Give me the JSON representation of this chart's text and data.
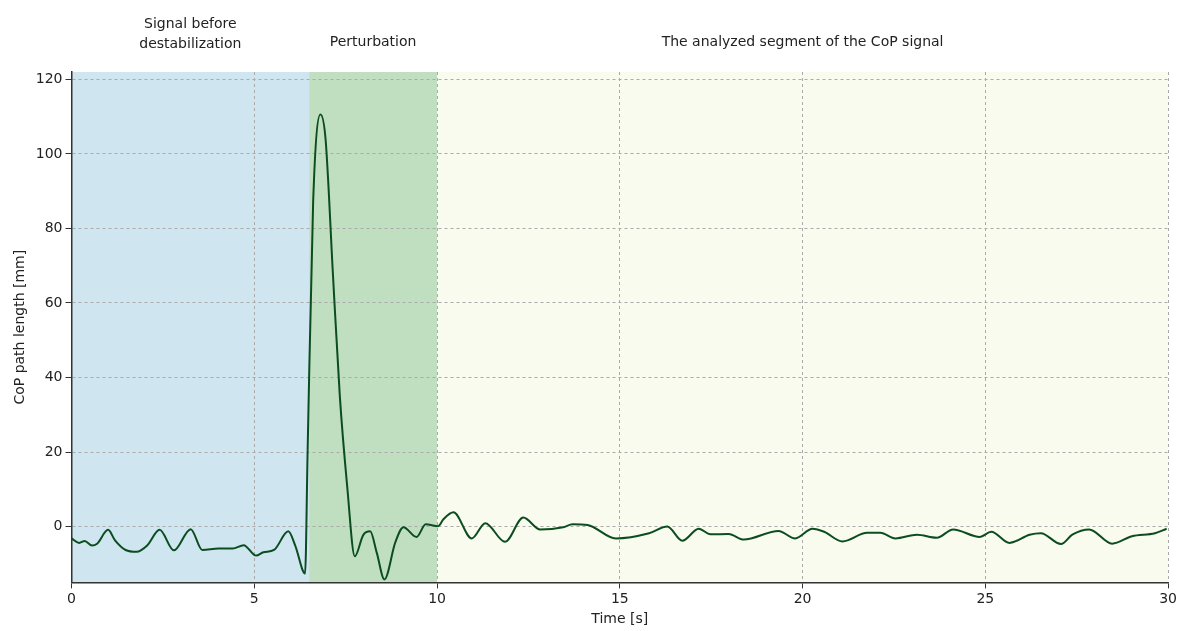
{
  "chart_data": {
    "type": "line",
    "xlabel": "Time [s]",
    "ylabel": "CoP path length [mm]",
    "xlim": [
      0,
      30
    ],
    "ylim": [
      -15,
      122
    ],
    "xticks": [
      0,
      5,
      10,
      15,
      20,
      25,
      30
    ],
    "yticks": [
      0,
      20,
      40,
      60,
      80,
      100,
      120
    ],
    "grid": true,
    "legend": false,
    "marker": "none",
    "line_style": "solid",
    "bands": [
      {
        "axis": "x",
        "from": 0,
        "to": 6.5,
        "label": "Signal before destabilization",
        "color": "#cfe5ef"
      },
      {
        "axis": "x",
        "from": 6.5,
        "to": 10,
        "label": "Perturbation",
        "color": "#c0dfc0"
      },
      {
        "axis": "x",
        "from": 10,
        "to": 30,
        "label": "The analyzed segment of the CoP signal",
        "color": "#f9fbef"
      }
    ],
    "series": [
      {
        "color": "#0b4d1f",
        "x": [
          0,
          0.21,
          0.36,
          0.56,
          0.7,
          1.0,
          1.19,
          1.48,
          1.78,
          2.07,
          2.41,
          2.8,
          3.26,
          3.58,
          4.02,
          4.41,
          4.71,
          5.05,
          5.25,
          5.54,
          5.93,
          6.12,
          6.39,
          6.46,
          6.61,
          6.81,
          6.95,
          7.15,
          7.34,
          7.54,
          7.75,
          7.98,
          8.17,
          8.35,
          8.56,
          8.86,
          9.08,
          9.44,
          9.69,
          10.03,
          10.18,
          10.45,
          10.95,
          11.32,
          11.86,
          12.36,
          12.82,
          13.45,
          13.71,
          14.12,
          14.89,
          15.8,
          16.3,
          16.71,
          17.16,
          17.48,
          17.98,
          18.39,
          19.34,
          19.8,
          20.27,
          20.59,
          21.09,
          21.77,
          22.13,
          22.54,
          23.13,
          23.67,
          24.12,
          24.85,
          25.16,
          25.66,
          26.21,
          26.52,
          27.07,
          27.38,
          27.84,
          28.47,
          29.01,
          29.64,
          29.96
        ],
        "values": [
          -3.2,
          -4.4,
          -3.9,
          -5.1,
          -4.6,
          -0.9,
          -3.7,
          -6.3,
          -6.8,
          -5.1,
          -0.9,
          -6.4,
          -0.7,
          -6.3,
          -5.9,
          -5.9,
          -5,
          -7.8,
          -6.9,
          -6.3,
          -1.3,
          -5.1,
          -12.6,
          20.6,
          87,
          110.6,
          104,
          68,
          35,
          11,
          -8,
          -2.3,
          -1.3,
          -7,
          -14.2,
          -4.2,
          -0.2,
          -2.8,
          0.6,
          0.1,
          2,
          3.8,
          -3.2,
          0.9,
          -4.1,
          2.4,
          -0.8,
          -0.2,
          0.6,
          0.4,
          -3.2,
          -1.8,
          0,
          -3.8,
          -0.6,
          -2.1,
          -2,
          -3.5,
          -1.2,
          -3.2,
          -0.6,
          -1.4,
          -4,
          -1.7,
          -1.7,
          -3.2,
          -2.2,
          -3,
          -0.8,
          -2.8,
          -1.4,
          -4.4,
          -2.2,
          -1.8,
          -4.7,
          -2.2,
          -0.8,
          -4.6,
          -2.6,
          -1.8,
          -0.6
        ]
      }
    ]
  }
}
